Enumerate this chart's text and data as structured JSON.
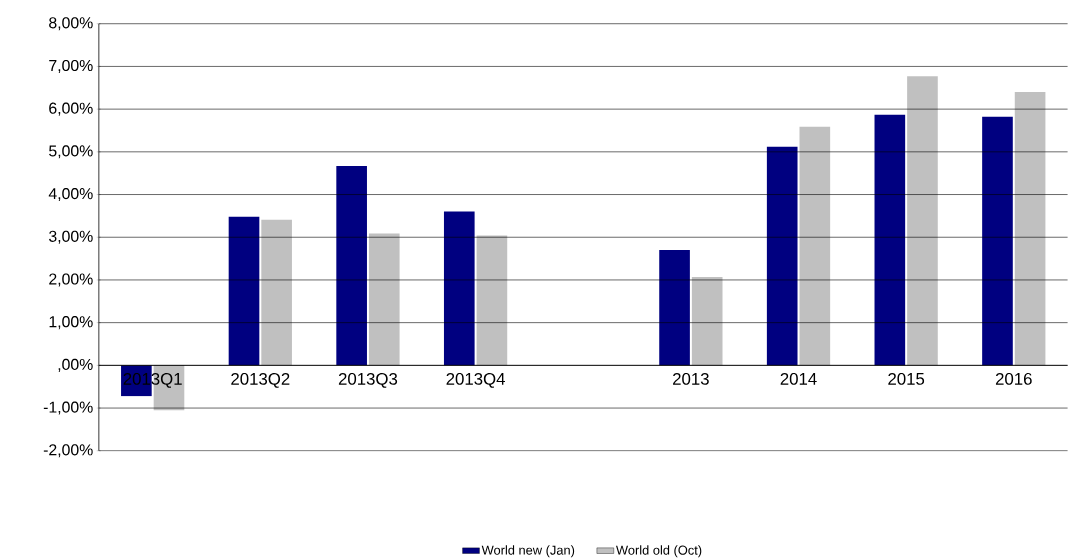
{
  "chart_data": {
    "type": "bar",
    "categories": [
      "2013Q1",
      "2013Q2",
      "2013Q3",
      "2013Q4",
      null,
      "2013",
      "2014",
      "2015",
      "2016"
    ],
    "series": [
      {
        "name": "World new (Jan)",
        "color": "#000080",
        "values": [
          -0.72,
          3.48,
          4.67,
          3.6,
          null,
          2.7,
          5.12,
          5.87,
          5.82
        ]
      },
      {
        "name": "World old (Oct)",
        "color": "#c0c0c0",
        "values": [
          -1.05,
          3.41,
          3.09,
          3.04,
          null,
          2.07,
          5.59,
          6.77,
          6.4
        ]
      }
    ],
    "ylim": [
      -2,
      8
    ],
    "yticks": [
      {
        "value": -2,
        "label": "-2,00%"
      },
      {
        "value": -1,
        "label": "-1,00%"
      },
      {
        "value": 0,
        "label": ",00%"
      },
      {
        "value": 1,
        "label": "1,00%"
      },
      {
        "value": 2,
        "label": "2,00%"
      },
      {
        "value": 3,
        "label": "3,00%"
      },
      {
        "value": 4,
        "label": "4,00%"
      },
      {
        "value": 5,
        "label": "5,00%"
      },
      {
        "value": 6,
        "label": "6,00%"
      },
      {
        "value": 7,
        "label": "7,00%"
      },
      {
        "value": 8,
        "label": "8,00%"
      }
    ],
    "grid": "y",
    "legend": "bottom"
  }
}
